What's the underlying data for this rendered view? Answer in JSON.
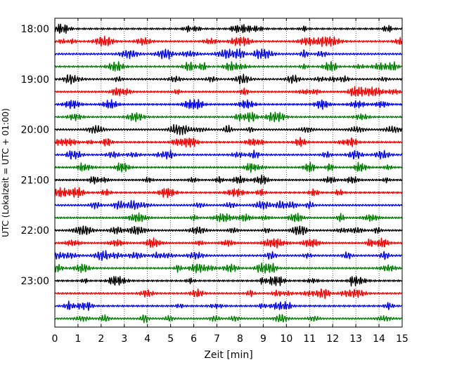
{
  "chart_data": {
    "type": "line",
    "title": "",
    "xlabel": "Zeit  [min]",
    "ylabel": "UTC (Lokalzeit = UTC + 01:00)",
    "xlim": [
      0,
      15
    ],
    "x_ticks": [
      0,
      1,
      2,
      3,
      4,
      5,
      6,
      7,
      8,
      9,
      10,
      11,
      12,
      13,
      14,
      15
    ],
    "x_tick_labels": [
      "0",
      "1",
      "2",
      "3",
      "4",
      "5",
      "6",
      "7",
      "8",
      "9",
      "10",
      "11",
      "12",
      "13",
      "14",
      "15"
    ],
    "y_ticks": [
      "18:00",
      "19:00",
      "20:00",
      "21:00",
      "22:00",
      "23:00"
    ],
    "trace_rows": [
      "18:00",
      "18:15",
      "18:30",
      "18:45",
      "19:00",
      "19:15",
      "19:30",
      "19:45",
      "20:00",
      "20:15",
      "20:30",
      "20:45",
      "21:00",
      "21:15",
      "21:30",
      "21:45",
      "22:00",
      "22:15",
      "22:30",
      "22:45",
      "23:00",
      "23:15",
      "23:30",
      "23:45"
    ],
    "color_cycle": [
      "#000000",
      "#ff0000",
      "#0000ff",
      "#008000"
    ],
    "grid": true
  }
}
